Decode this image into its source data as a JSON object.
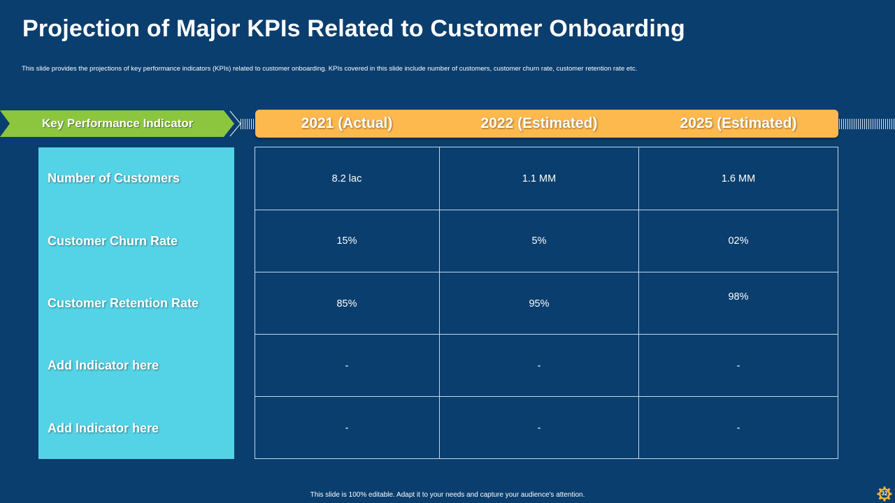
{
  "slide": {
    "title": "Projection of Major KPIs Related to Customer Onboarding",
    "subtitle": "This slide provides the projections of key performance indicators (KPIs) related to customer onboarding. KPIs  covered in this slide include number of customers, customer churn rate, customer retention rate etc.",
    "footer": "This slide is 100% editable.  Adapt it to your needs and capture your audience's attention.",
    "page_number": "32"
  },
  "table": {
    "kpi_header": "Key Performance Indicator",
    "columns": [
      "2021 (Actual)",
      "2022 (Estimated)",
      "2025 (Estimated)"
    ],
    "rows": [
      {
        "kpi": "Number of Customers",
        "values": [
          "8.2 lac",
          "1.1 MM",
          "1.6 MM"
        ]
      },
      {
        "kpi": "Customer Churn Rate",
        "values": [
          "15%",
          "5%",
          "02%"
        ]
      },
      {
        "kpi": "Customer Retention Rate",
        "values": [
          "85%",
          "95%",
          "98%"
        ]
      },
      {
        "kpi": "Add Indicator here",
        "values": [
          "-",
          "-",
          "-"
        ]
      },
      {
        "kpi": "Add Indicator here",
        "values": [
          "-",
          "-",
          "-"
        ]
      }
    ]
  },
  "colors": {
    "background": "#0a3e6e",
    "header_green": "#8cc63e",
    "header_orange": "#fdb94e",
    "kpi_panel": "#55d3e6",
    "grid_line": "#c9d6e4"
  },
  "icons": {
    "page_badge": "gear-icon"
  }
}
